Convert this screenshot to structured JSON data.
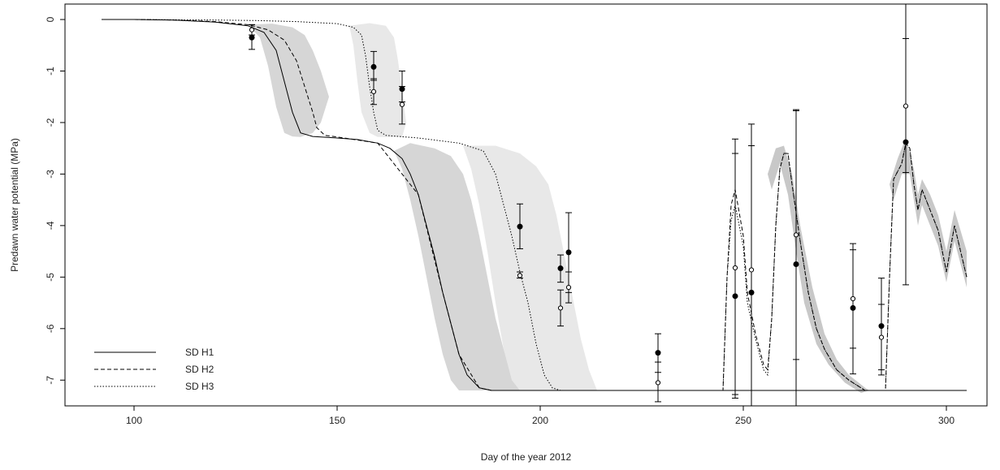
{
  "chart_data": {
    "type": "line",
    "title": "",
    "xlabel": "Day of the year 2012",
    "ylabel": "Predawn water potential (MPa)",
    "xlim": [
      83,
      310
    ],
    "ylim": [
      -7.5,
      0.3
    ],
    "xticks": [
      100,
      150,
      200,
      250,
      300
    ],
    "yticks": [
      0,
      -1,
      -2,
      -3,
      -4,
      -5,
      -6,
      -7
    ],
    "grid": false,
    "legend_position": "bottom-left",
    "series": [
      {
        "name": "SD H1",
        "style": "solid",
        "points": [
          [
            92,
            0
          ],
          [
            100,
            0
          ],
          [
            110,
            -0.01
          ],
          [
            120,
            -0.05
          ],
          [
            128,
            -0.12
          ],
          [
            132,
            -0.25
          ],
          [
            135,
            -0.6
          ],
          [
            137,
            -1.2
          ],
          [
            139,
            -1.8
          ],
          [
            141,
            -2.2
          ],
          [
            144,
            -2.27
          ],
          [
            150,
            -2.3
          ],
          [
            155,
            -2.33
          ],
          [
            160,
            -2.4
          ],
          [
            163,
            -2.5
          ],
          [
            166,
            -2.7
          ],
          [
            168,
            -3
          ],
          [
            170,
            -3.4
          ],
          [
            172,
            -4
          ],
          [
            174,
            -4.6
          ],
          [
            176,
            -5.3
          ],
          [
            178,
            -5.9
          ],
          [
            180,
            -6.5
          ],
          [
            182,
            -6.9
          ],
          [
            185,
            -7.15
          ],
          [
            188,
            -7.2
          ],
          [
            200,
            -7.2
          ],
          [
            250,
            -7.2
          ],
          [
            305,
            -7.2
          ]
        ]
      },
      {
        "name": "SD H2",
        "style": "dashed",
        "points": [
          [
            92,
            0
          ],
          [
            100,
            0
          ],
          [
            110,
            -0.01
          ],
          [
            120,
            -0.04
          ],
          [
            128,
            -0.1
          ],
          [
            133,
            -0.2
          ],
          [
            137,
            -0.4
          ],
          [
            140,
            -0.8
          ],
          [
            142,
            -1.3
          ],
          [
            144,
            -1.8
          ],
          [
            145,
            -2.1
          ],
          [
            147,
            -2.25
          ],
          [
            150,
            -2.28
          ],
          [
            160,
            -2.4
          ],
          [
            170,
            -3.4
          ],
          [
            176,
            -5.3
          ],
          [
            180,
            -6.5
          ],
          [
            185,
            -7.15
          ],
          [
            188,
            -7.2
          ],
          [
            240,
            -7.2
          ],
          [
            245,
            -7.2
          ],
          [
            246,
            -5
          ],
          [
            247,
            -3.6
          ],
          [
            248,
            -3.3
          ],
          [
            250,
            -4.2
          ],
          [
            251,
            -5.3
          ],
          [
            253,
            -6.1
          ],
          [
            255,
            -6.7
          ],
          [
            256,
            -6.8
          ],
          [
            257,
            -5.8
          ],
          [
            258,
            -4
          ],
          [
            259,
            -2.9
          ],
          [
            260,
            -2.6
          ],
          [
            261,
            -2.6
          ],
          [
            262,
            -3.2
          ],
          [
            264,
            -4.3
          ],
          [
            266,
            -5.3
          ],
          [
            268,
            -6
          ],
          [
            270,
            -6.4
          ],
          [
            273,
            -6.8
          ],
          [
            276,
            -7
          ],
          [
            280,
            -7.2
          ],
          [
            284,
            -7.2
          ],
          [
            285,
            -7.2
          ],
          [
            286,
            -5
          ],
          [
            287,
            -3.1
          ],
          [
            289,
            -2.8
          ],
          [
            290,
            -2.4
          ],
          [
            291,
            -2.5
          ],
          [
            292,
            -3.2
          ],
          [
            293,
            -3.7
          ],
          [
            294,
            -3.3
          ],
          [
            296,
            -3.7
          ],
          [
            298,
            -4.1
          ],
          [
            300,
            -4.9
          ],
          [
            302,
            -4
          ],
          [
            305,
            -5
          ]
        ]
      },
      {
        "name": "SD H3",
        "style": "dotted",
        "points": [
          [
            92,
            0
          ],
          [
            100,
            0
          ],
          [
            110,
            -0.005
          ],
          [
            120,
            -0.01
          ],
          [
            130,
            -0.02
          ],
          [
            140,
            -0.04
          ],
          [
            150,
            -0.08
          ],
          [
            154,
            -0.15
          ],
          [
            156,
            -0.3
          ],
          [
            157,
            -0.7
          ],
          [
            158,
            -1.3
          ],
          [
            159,
            -1.8
          ],
          [
            160,
            -2.15
          ],
          [
            162,
            -2.25
          ],
          [
            170,
            -2.3
          ],
          [
            180,
            -2.4
          ],
          [
            186,
            -2.55
          ],
          [
            189,
            -3
          ],
          [
            191,
            -3.6
          ],
          [
            193,
            -4.2
          ],
          [
            195,
            -4.9
          ],
          [
            197,
            -5.5
          ],
          [
            199,
            -6.3
          ],
          [
            201,
            -6.9
          ],
          [
            203,
            -7.15
          ],
          [
            205,
            -7.2
          ],
          [
            240,
            -7.2
          ],
          [
            245,
            -7.2
          ],
          [
            246,
            -5
          ],
          [
            247,
            -3.9
          ],
          [
            248,
            -3.6
          ],
          [
            250,
            -4.4
          ],
          [
            251,
            -5.5
          ],
          [
            253,
            -6.2
          ],
          [
            255,
            -6.8
          ],
          [
            256,
            -6.9
          ],
          [
            257,
            -5.8
          ],
          [
            258,
            -4
          ],
          [
            259,
            -2.9
          ],
          [
            260,
            -2.6
          ],
          [
            261,
            -2.6
          ],
          [
            262,
            -3.2
          ],
          [
            264,
            -4.3
          ],
          [
            266,
            -5.3
          ],
          [
            268,
            -6
          ],
          [
            270,
            -6.4
          ],
          [
            273,
            -6.8
          ],
          [
            276,
            -7
          ],
          [
            280,
            -7.2
          ],
          [
            284,
            -7.2
          ],
          [
            285,
            -7.2
          ],
          [
            286,
            -5
          ],
          [
            287,
            -3.1
          ],
          [
            289,
            -2.8
          ],
          [
            290,
            -2.4
          ],
          [
            291,
            -2.5
          ],
          [
            292,
            -3.2
          ],
          [
            293,
            -3.7
          ],
          [
            294,
            -3.3
          ],
          [
            296,
            -3.7
          ],
          [
            298,
            -4.1
          ],
          [
            300,
            -4.9
          ],
          [
            302,
            -4
          ],
          [
            305,
            -5
          ]
        ]
      }
    ],
    "bands": [
      {
        "color": "#d6d6d6",
        "polygon": [
          [
            128,
            -0.1
          ],
          [
            131,
            -0.35
          ],
          [
            133,
            -0.9
          ],
          [
            135,
            -1.7
          ],
          [
            137,
            -2.2
          ],
          [
            139,
            -2.27
          ],
          [
            141,
            -2.28
          ],
          [
            144,
            -2.2
          ],
          [
            146,
            -2.0
          ],
          [
            148,
            -1.5
          ],
          [
            146,
            -1.0
          ],
          [
            144,
            -0.6
          ],
          [
            142,
            -0.3
          ],
          [
            139,
            -0.15
          ],
          [
            134,
            -0.08
          ]
        ]
      },
      {
        "color": "#d6d6d6",
        "polygon": [
          [
            164,
            -2.55
          ],
          [
            166,
            -2.9
          ],
          [
            168,
            -3.5
          ],
          [
            170,
            -4.2
          ],
          [
            172,
            -5.0
          ],
          [
            174,
            -5.8
          ],
          [
            176,
            -6.5
          ],
          [
            178,
            -7.0
          ],
          [
            180,
            -7.2
          ],
          [
            195,
            -7.2
          ],
          [
            193,
            -6.9
          ],
          [
            191,
            -6.4
          ],
          [
            189,
            -5.8
          ],
          [
            187,
            -5.0
          ],
          [
            185,
            -4.2
          ],
          [
            183,
            -3.5
          ],
          [
            181,
            -3.0
          ],
          [
            178,
            -2.65
          ],
          [
            174,
            -2.5
          ],
          [
            168,
            -2.4
          ]
        ]
      },
      {
        "color": "#e8e8e8",
        "polygon": [
          [
            153,
            -0.12
          ],
          [
            154,
            -0.5
          ],
          [
            155,
            -1.2
          ],
          [
            156,
            -1.8
          ],
          [
            158,
            -2.2
          ],
          [
            160,
            -2.28
          ],
          [
            166,
            -2.28
          ],
          [
            167,
            -2.0
          ],
          [
            166,
            -1.4
          ],
          [
            165,
            -0.8
          ],
          [
            164,
            -0.35
          ],
          [
            162,
            -0.12
          ],
          [
            158,
            -0.07
          ]
        ]
      },
      {
        "color": "#e8e8e8",
        "polygon": [
          [
            181,
            -2.45
          ],
          [
            183,
            -2.9
          ],
          [
            185,
            -3.6
          ],
          [
            187,
            -4.5
          ],
          [
            189,
            -5.5
          ],
          [
            191,
            -6.4
          ],
          [
            193,
            -7.0
          ],
          [
            195,
            -7.2
          ],
          [
            214,
            -7.2
          ],
          [
            212,
            -6.8
          ],
          [
            210,
            -6.2
          ],
          [
            208,
            -5.4
          ],
          [
            206,
            -4.6
          ],
          [
            204,
            -3.8
          ],
          [
            202,
            -3.2
          ],
          [
            199,
            -2.85
          ],
          [
            195,
            -2.6
          ],
          [
            189,
            -2.45
          ]
        ]
      },
      {
        "color": "#c8c8c8",
        "polygon": [
          [
            256,
            -3.0
          ],
          [
            258,
            -2.5
          ],
          [
            260,
            -2.45
          ],
          [
            262,
            -3.0
          ],
          [
            264,
            -4.0
          ],
          [
            267,
            -5.2
          ],
          [
            270,
            -6.1
          ],
          [
            273,
            -6.6
          ],
          [
            276,
            -6.9
          ],
          [
            280,
            -7.15
          ],
          [
            281,
            -7.2
          ],
          [
            279,
            -7.25
          ],
          [
            275,
            -7.05
          ],
          [
            271,
            -6.7
          ],
          [
            268,
            -6.3
          ],
          [
            265,
            -5.5
          ],
          [
            263,
            -4.5
          ],
          [
            261,
            -3.4
          ],
          [
            259,
            -2.8
          ],
          [
            257,
            -3.3
          ]
        ]
      },
      {
        "color": "#c8c8c8",
        "polygon": [
          [
            286,
            -3.2
          ],
          [
            288,
            -2.7
          ],
          [
            290,
            -2.3
          ],
          [
            292,
            -2.9
          ],
          [
            293,
            -3.4
          ],
          [
            294,
            -3.1
          ],
          [
            296,
            -3.4
          ],
          [
            298,
            -3.8
          ],
          [
            300,
            -4.5
          ],
          [
            302,
            -3.7
          ],
          [
            305,
            -4.5
          ],
          [
            305,
            -5.2
          ],
          [
            302,
            -4.3
          ],
          [
            300,
            -5.1
          ],
          [
            298,
            -4.4
          ],
          [
            296,
            -4.0
          ],
          [
            294,
            -3.6
          ],
          [
            293,
            -4.0
          ],
          [
            291,
            -3.0
          ],
          [
            289,
            -3.0
          ],
          [
            287,
            -3.5
          ]
        ]
      }
    ],
    "observations": [
      {
        "x": 129,
        "y": -0.35,
        "lo": -0.58,
        "hi": -0.1,
        "filled": true
      },
      {
        "x": 129,
        "y": -0.2,
        "lo": -0.3,
        "hi": -0.1,
        "filled": false
      },
      {
        "x": 159,
        "y": -0.92,
        "lo": -1.18,
        "hi": -0.62,
        "filled": true
      },
      {
        "x": 159,
        "y": -1.4,
        "lo": -1.65,
        "hi": -1.15,
        "filled": false
      },
      {
        "x": 166,
        "y": -1.35,
        "lo": -1.6,
        "hi": -1.0,
        "filled": true
      },
      {
        "x": 166,
        "y": -1.65,
        "lo": -2.03,
        "hi": -1.3,
        "filled": false
      },
      {
        "x": 195,
        "y": -4.02,
        "lo": -4.45,
        "hi": -3.58,
        "filled": true
      },
      {
        "x": 195,
        "y": -4.97,
        "lo": -5.02,
        "hi": -4.9,
        "filled": false
      },
      {
        "x": 205,
        "y": -4.83,
        "lo": -5.1,
        "hi": -4.57,
        "filled": true
      },
      {
        "x": 205,
        "y": -5.6,
        "lo": -5.95,
        "hi": -5.25,
        "filled": false
      },
      {
        "x": 207,
        "y": -4.52,
        "lo": -5.3,
        "hi": -3.75,
        "filled": true
      },
      {
        "x": 207,
        "y": -5.2,
        "lo": -5.5,
        "hi": -4.9,
        "filled": false
      },
      {
        "x": 229,
        "y": -6.47,
        "lo": -6.85,
        "hi": -6.1,
        "filled": true
      },
      {
        "x": 229,
        "y": -7.05,
        "lo": -7.42,
        "hi": -6.65,
        "filled": false
      },
      {
        "x": 248,
        "y": -5.37,
        "lo": -7.35,
        "hi": -2.32,
        "filled": true
      },
      {
        "x": 248,
        "y": -4.82,
        "lo": -7.28,
        "hi": -2.6,
        "filled": false
      },
      {
        "x": 252,
        "y": -5.3,
        "lo": -7.5,
        "hi": -2.03,
        "filled": true
      },
      {
        "x": 252,
        "y": -4.86,
        "lo": -7.5,
        "hi": -2.45,
        "filled": false
      },
      {
        "x": 263,
        "y": -4.75,
        "lo": -7.5,
        "hi": -1.77,
        "filled": true
      },
      {
        "x": 263,
        "y": -4.18,
        "lo": -6.6,
        "hi": -1.75,
        "filled": false
      },
      {
        "x": 277,
        "y": -5.6,
        "lo": -6.88,
        "hi": -4.35,
        "filled": true
      },
      {
        "x": 277,
        "y": -5.42,
        "lo": -6.38,
        "hi": -4.47,
        "filled": false
      },
      {
        "x": 284,
        "y": -5.95,
        "lo": -6.9,
        "hi": -5.02,
        "filled": true
      },
      {
        "x": 284,
        "y": -6.17,
        "lo": -6.8,
        "hi": -5.53,
        "filled": false
      },
      {
        "x": 290,
        "y": -2.38,
        "lo": -5.15,
        "hi": 0.3,
        "filled": true
      },
      {
        "x": 290,
        "y": -1.68,
        "lo": -2.97,
        "hi": -0.37,
        "filled": false
      }
    ]
  }
}
